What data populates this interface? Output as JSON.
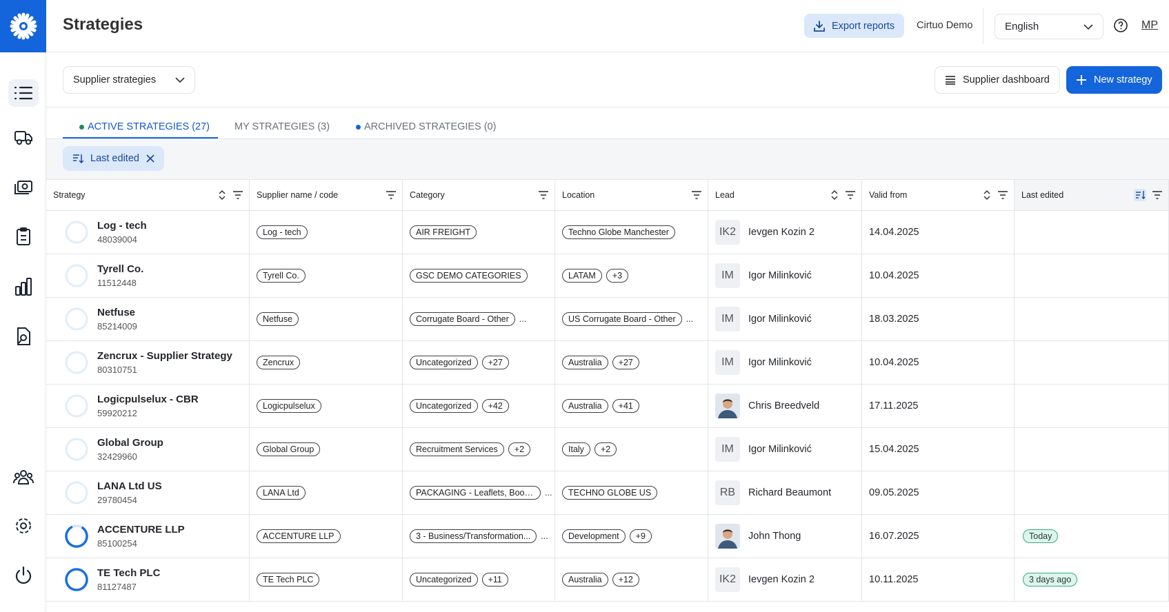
{
  "header": {
    "title": "Strategies",
    "export": "Export reports",
    "org": "Cirtuo Demo",
    "language": "English",
    "user": "MP"
  },
  "toolbar": {
    "view": "Supplier strategies",
    "dashboard": "Supplier dashboard",
    "new": "New strategy"
  },
  "tabs": [
    "ACTIVE STRATEGIES (27)",
    "MY STRATEGIES (3)",
    "ARCHIVED STRATEGIES (0)"
  ],
  "filter": "Last edited",
  "table": {
    "columns": [
      "Strategy",
      "Supplier name / code",
      "Category",
      "Location",
      "Lead",
      "Valid from",
      "Last edited"
    ],
    "rows": [
      {
        "name": "Log - tech",
        "code": "48039004",
        "supplier": "Log - tech",
        "category": {
          "tags": [
            "AIR FREIGHT"
          ]
        },
        "location": {
          "tags": [
            "Techno Globe Manchester"
          ]
        },
        "lead": {
          "initials": "IK2",
          "name": "Ievgen Kozin 2"
        },
        "valid_from": "14.04.2025"
      },
      {
        "name": "Tyrell Co.",
        "code": "11512448",
        "supplier": "Tyrell Co.",
        "category": {
          "tags": [
            "GSC DEMO CATEGORIES"
          ]
        },
        "location": {
          "tags": [
            "LATAM",
            "+3"
          ]
        },
        "lead": {
          "initials": "IM",
          "name": "Igor Milinković"
        },
        "valid_from": "10.04.2025"
      },
      {
        "name": "Netfuse",
        "code": "85214009",
        "supplier": "Netfuse",
        "category": {
          "tags": [
            "Corrugate Board - Other"
          ],
          "more": "..."
        },
        "location": {
          "tags": [
            "US Corrugate Board - Other"
          ],
          "more": "..."
        },
        "lead": {
          "initials": "IM",
          "name": "Igor Milinković"
        },
        "valid_from": "18.03.2025"
      },
      {
        "name": "Zencrux - Supplier Strategy",
        "code": "80310751",
        "supplier": "Zencrux",
        "category": {
          "tags": [
            "Uncategorized",
            "+27"
          ]
        },
        "location": {
          "tags": [
            "Australia",
            "+27"
          ]
        },
        "lead": {
          "initials": "IM",
          "name": "Igor Milinković"
        },
        "valid_from": "10.04.2025"
      },
      {
        "name": "Logicpulselux - CBR",
        "code": "59920212",
        "supplier": "Logicpulselux",
        "category": {
          "tags": [
            "Uncategorized",
            "+42"
          ]
        },
        "location": {
          "tags": [
            "Australia",
            "+41"
          ]
        },
        "lead": {
          "name": "Chris Breedveld"
        },
        "valid_from": "17.11.2025"
      },
      {
        "name": "Global Group",
        "code": "32429960",
        "supplier": "Global Group",
        "category": {
          "tags": [
            "Recruitment Services",
            "+2"
          ]
        },
        "location": {
          "tags": [
            "Italy",
            "+2"
          ]
        },
        "lead": {
          "initials": "IM",
          "name": "Igor Milinković"
        },
        "valid_from": "15.04.2025"
      },
      {
        "name": "LANA Ltd US",
        "code": "29780454",
        "supplier": "LANA Ltd",
        "category": {
          "tags": [
            "PACKAGING - Leaflets, Book..."
          ],
          "more": "..."
        },
        "location": {
          "tags": [
            "TECHNO GLOBE US"
          ]
        },
        "lead": {
          "initials": "RB",
          "name": "Richard Beaumont"
        },
        "valid_from": "09.05.2025"
      },
      {
        "name": "ACCENTURE LLP",
        "code": "85100254",
        "supplier": "ACCENTURE LLP",
        "category": {
          "tags": [
            "3 - Business/Transformation..."
          ],
          "more": "..."
        },
        "location": {
          "tags": [
            "Development",
            "+9"
          ]
        },
        "lead": {
          "name": "John Thong"
        },
        "valid_from": "16.07.2025",
        "last_edited": "Today"
      },
      {
        "name": "TE Tech PLC",
        "code": "81127487",
        "supplier": "TE Tech PLC",
        "category": {
          "tags": [
            "Uncategorized",
            "+11"
          ]
        },
        "location": {
          "tags": [
            "Australia",
            "+12"
          ]
        },
        "lead": {
          "initials": "IK2",
          "name": "Ievgen Kozin 2"
        },
        "valid_from": "10.11.2025",
        "last_edited": "3 days ago"
      }
    ]
  }
}
